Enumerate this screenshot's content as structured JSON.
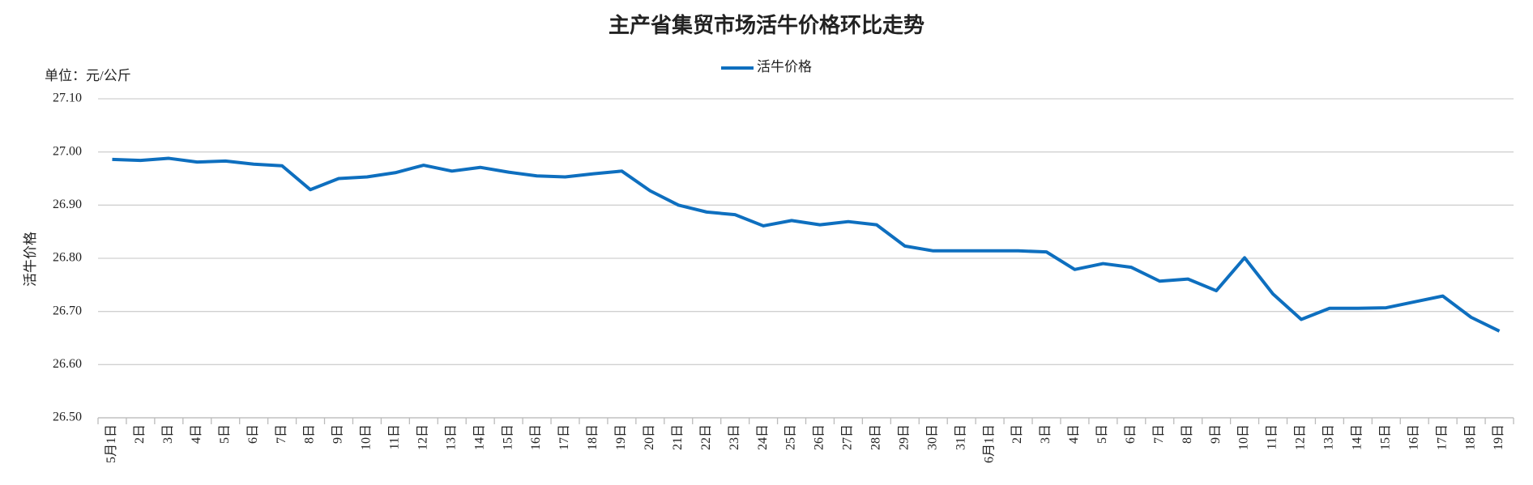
{
  "chart_data": {
    "type": "line",
    "title": "主产省集贸市场活牛价格环比走势",
    "unit_label": "单位：元/公斤",
    "y_label": "活牛价格",
    "categories": [
      "5月1日",
      "2日",
      "3日",
      "4日",
      "5日",
      "6日",
      "7日",
      "8日",
      "9日",
      "10日",
      "11日",
      "12日",
      "13日",
      "14日",
      "15日",
      "16日",
      "17日",
      "18日",
      "19日",
      "20日",
      "21日",
      "22日",
      "23日",
      "24日",
      "25日",
      "26日",
      "27日",
      "28日",
      "29日",
      "30日",
      "31日",
      "6月1日",
      "2日",
      "3日",
      "4日",
      "5日",
      "6日",
      "7日",
      "8日",
      "9日",
      "10日",
      "11日",
      "12日",
      "13日",
      "14日",
      "15日",
      "16日",
      "17日",
      "18日",
      "19日"
    ],
    "series": [
      {
        "name": "活牛价格",
        "color": "#0e6fbf",
        "values": [
          26.986,
          26.984,
          26.988,
          26.981,
          26.983,
          26.977,
          26.974,
          26.929,
          26.95,
          26.953,
          26.961,
          26.975,
          26.964,
          26.971,
          26.962,
          26.955,
          26.953,
          26.959,
          26.964,
          26.927,
          26.9,
          26.887,
          26.882,
          26.861,
          26.871,
          26.863,
          26.869,
          26.863,
          26.823,
          26.814,
          26.814,
          26.814,
          26.814,
          26.812,
          26.779,
          26.79,
          26.783,
          26.757,
          26.761,
          26.739,
          26.801,
          26.733,
          26.685,
          26.706,
          26.706,
          26.707,
          26.718,
          26.729,
          26.689,
          26.663
        ]
      }
    ],
    "ylim": [
      26.5,
      27.1
    ],
    "yticks": [
      {
        "value": 26.5,
        "label": "26.50"
      },
      {
        "value": 26.6,
        "label": "26.60"
      },
      {
        "value": 26.7,
        "label": "26.70"
      },
      {
        "value": 26.8,
        "label": "26.80"
      },
      {
        "value": 26.9,
        "label": "26.90"
      },
      {
        "value": 27.0,
        "label": "27.00"
      },
      {
        "value": 27.1,
        "label": "27.10"
      }
    ],
    "grid": true,
    "legend": "top"
  }
}
